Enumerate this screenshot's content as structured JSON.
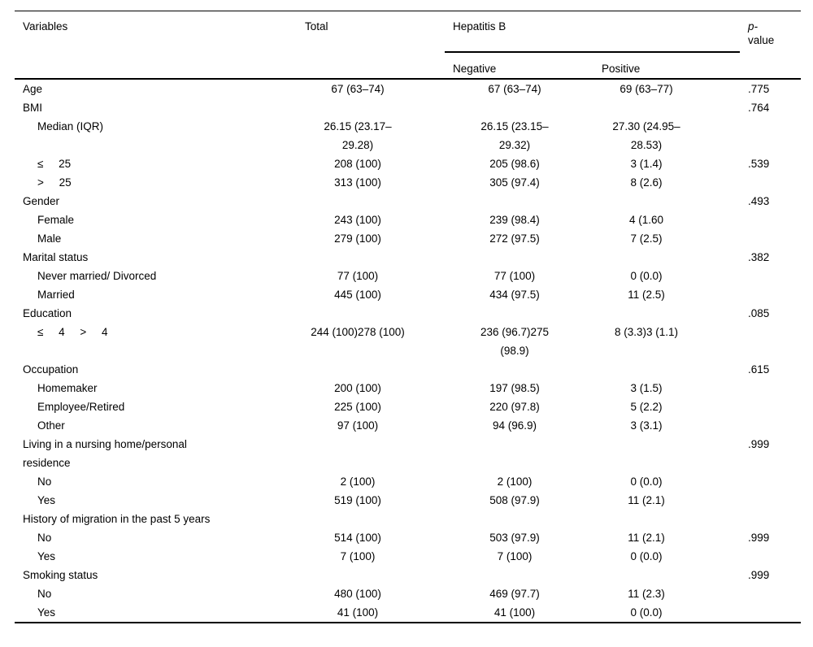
{
  "colors": {
    "text": "#000000",
    "background": "#ffffff",
    "rule": "#000000"
  },
  "table": {
    "header": {
      "variables": "Variables",
      "total": "Total",
      "hepatitis_b": "Hepatitis B",
      "negative": "Negative",
      "positive": "Positive",
      "p_value_line1": "p-",
      "p_value_line2": "value"
    },
    "rows": [
      {
        "label": "Age",
        "indent": false,
        "total": "67 (63–74)",
        "negative": "67 (63–74)",
        "positive": "69 (63–77)",
        "p": ".775"
      },
      {
        "label": "BMI",
        "indent": false,
        "total": "",
        "negative": "",
        "positive": "",
        "p": ".764"
      },
      {
        "label": "Median (IQR)",
        "indent": true,
        "total": "26.15 (23.17–\n29.28)",
        "negative": "26.15 (23.15–\n29.32)",
        "positive": "27.30 (24.95–\n28.53)",
        "p": ""
      },
      {
        "label": "≤     25",
        "indent": true,
        "total": "208 (100)",
        "negative": "205 (98.6)",
        "positive": "3 (1.4)",
        "p": ".539"
      },
      {
        "label": ">     25",
        "indent": true,
        "total": "313 (100)",
        "negative": "305 (97.4)",
        "positive": "8 (2.6)",
        "p": ""
      },
      {
        "label": "Gender",
        "indent": false,
        "total": "",
        "negative": "",
        "positive": "",
        "p": ".493"
      },
      {
        "label": "Female",
        "indent": true,
        "total": "243 (100)",
        "negative": "239 (98.4)",
        "positive": "4 (1.60",
        "p": ""
      },
      {
        "label": "Male",
        "indent": true,
        "total": "279 (100)",
        "negative": "272 (97.5)",
        "positive": "7 (2.5)",
        "p": ""
      },
      {
        "label": "Marital status",
        "indent": false,
        "total": "",
        "negative": "",
        "positive": "",
        "p": ".382"
      },
      {
        "label": "Never married/ Divorced",
        "indent": true,
        "total": "77 (100)",
        "negative": "77 (100)",
        "positive": "0 (0.0)",
        "p": ""
      },
      {
        "label": "Married",
        "indent": true,
        "total": "445 (100)",
        "negative": "434 (97.5)",
        "positive": "11 (2.5)",
        "p": ""
      },
      {
        "label": "Education",
        "indent": false,
        "total": "",
        "negative": "",
        "positive": "",
        "p": ".085"
      },
      {
        "label": "≤     4     >     4",
        "indent": true,
        "total": "244 (100)278 (100)",
        "negative": "236 (96.7)275\n(98.9)",
        "positive": "8 (3.3)3 (1.1)",
        "p": ""
      },
      {
        "label": "Occupation",
        "indent": false,
        "total": "",
        "negative": "",
        "positive": "",
        "p": ".615"
      },
      {
        "label": "Homemaker",
        "indent": true,
        "total": "200 (100)",
        "negative": "197 (98.5)",
        "positive": "3 (1.5)",
        "p": ""
      },
      {
        "label": "Employee/Retired",
        "indent": true,
        "total": "225 (100)",
        "negative": "220 (97.8)",
        "positive": "5 (2.2)",
        "p": ""
      },
      {
        "label": "Other",
        "indent": true,
        "total": "97 (100)",
        "negative": "94 (96.9)",
        "positive": "3 (3.1)",
        "p": ""
      },
      {
        "label": "Living in a nursing home/personal\nresidence",
        "indent": false,
        "total": "",
        "negative": "",
        "positive": "",
        "p": ".999"
      },
      {
        "label": "No",
        "indent": true,
        "total": "2 (100)",
        "negative": "2 (100)",
        "positive": "0 (0.0)",
        "p": ""
      },
      {
        "label": "Yes",
        "indent": true,
        "total": "519 (100)",
        "negative": "508 (97.9)",
        "positive": "11 (2.1)",
        "p": ""
      },
      {
        "label": "History of migration in the past 5 years",
        "indent": false,
        "total": "",
        "negative": "",
        "positive": "",
        "p": ""
      },
      {
        "label": "No",
        "indent": true,
        "total": "514 (100)",
        "negative": "503 (97.9)",
        "positive": "11 (2.1)",
        "p": ".999"
      },
      {
        "label": "Yes",
        "indent": true,
        "total": "7 (100)",
        "negative": "7 (100)",
        "positive": "0 (0.0)",
        "p": ""
      },
      {
        "label": "Smoking status",
        "indent": false,
        "total": "",
        "negative": "",
        "positive": "",
        "p": ".999"
      },
      {
        "label": "No",
        "indent": true,
        "total": "480 (100)",
        "negative": "469 (97.7)",
        "positive": "11 (2.3)",
        "p": ""
      },
      {
        "label": "Yes",
        "indent": true,
        "total": "41 (100)",
        "negative": "41 (100)",
        "positive": "0 (0.0)",
        "p": ""
      }
    ]
  }
}
